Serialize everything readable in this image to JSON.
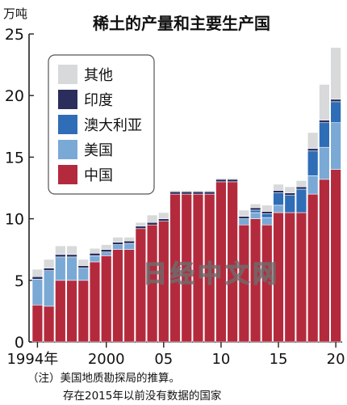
{
  "title": "稀土的产量和主要生产国",
  "unit": "万吨",
  "watermark": "日经中文网",
  "note_line1": "（注）美国地质勘探局的推算。",
  "note_line2": "存在2015年以前没有数据的国家",
  "colors": {
    "other": "#d7d9da",
    "india": "#2b2d5c",
    "australia": "#2f6db7",
    "usa": "#7aa9d6",
    "china": "#b42a3d"
  },
  "chart_data": {
    "type": "bar",
    "stacked": true,
    "title": "稀土的产量和主要生产国",
    "ylabel": "万吨",
    "ylim": [
      0,
      25
    ],
    "yticks": [
      0,
      5,
      10,
      15,
      20,
      25
    ],
    "x_tick_labels": [
      {
        "year": 1994,
        "label": "1994年"
      },
      {
        "year": 2000,
        "label": "2000"
      },
      {
        "year": 2005,
        "label": "05"
      },
      {
        "year": 2010,
        "label": "10"
      },
      {
        "year": 2015,
        "label": "15"
      },
      {
        "year": 2020,
        "label": "20"
      }
    ],
    "categories": [
      1994,
      1995,
      1996,
      1997,
      1998,
      1999,
      2000,
      2001,
      2002,
      2003,
      2004,
      2005,
      2006,
      2007,
      2008,
      2009,
      2010,
      2011,
      2012,
      2013,
      2014,
      2015,
      2016,
      2017,
      2018,
      2019,
      2020
    ],
    "series": [
      {
        "name": "中国",
        "key": "china",
        "values": [
          3.0,
          2.9,
          5.0,
          5.0,
          5.0,
          6.5,
          7.0,
          7.5,
          7.5,
          9.2,
          9.5,
          9.8,
          12.0,
          12.0,
          12.0,
          12.0,
          13.0,
          13.0,
          9.5,
          10.0,
          9.5,
          10.5,
          10.5,
          10.5,
          12.0,
          13.2,
          14.0
        ]
      },
      {
        "name": "美国",
        "key": "usa",
        "values": [
          2.1,
          2.9,
          1.9,
          1.9,
          1.0,
          0.5,
          0.3,
          0.4,
          0.5,
          0.0,
          0.0,
          0.0,
          0.0,
          0.0,
          0.0,
          0.0,
          0.0,
          0.0,
          0.5,
          0.5,
          0.6,
          0.6,
          0.0,
          0.0,
          1.5,
          2.6,
          3.8
        ]
      },
      {
        "name": "澳大利亚",
        "key": "australia",
        "values": [
          0,
          0,
          0,
          0,
          0,
          0,
          0,
          0,
          0,
          0,
          0,
          0,
          0,
          0,
          0,
          0,
          0,
          0,
          0.0,
          0.2,
          0.3,
          1.0,
          1.4,
          1.9,
          2.0,
          2.0,
          1.7
        ]
      },
      {
        "name": "印度",
        "key": "india",
        "values": [
          0.2,
          0.2,
          0.2,
          0.2,
          0.2,
          0.2,
          0.2,
          0.2,
          0.2,
          0.2,
          0.2,
          0.2,
          0.2,
          0.2,
          0.2,
          0.2,
          0.2,
          0.2,
          0.2,
          0.2,
          0.2,
          0.2,
          0.2,
          0.2,
          0.2,
          0.2,
          0.2
        ]
      },
      {
        "name": "其他",
        "key": "other",
        "values": [
          0.6,
          0.7,
          0.7,
          0.7,
          0.5,
          0.4,
          0.4,
          0.4,
          0.3,
          0.3,
          0.6,
          0.5,
          0.1,
          0.1,
          0.1,
          0.1,
          0.1,
          0.1,
          0.5,
          0.3,
          0.5,
          0.5,
          0.5,
          0.5,
          1.3,
          2.9,
          4.2
        ]
      }
    ],
    "legend": {
      "placement": "top-left",
      "order": [
        "other",
        "india",
        "australia",
        "usa",
        "china"
      ]
    }
  }
}
